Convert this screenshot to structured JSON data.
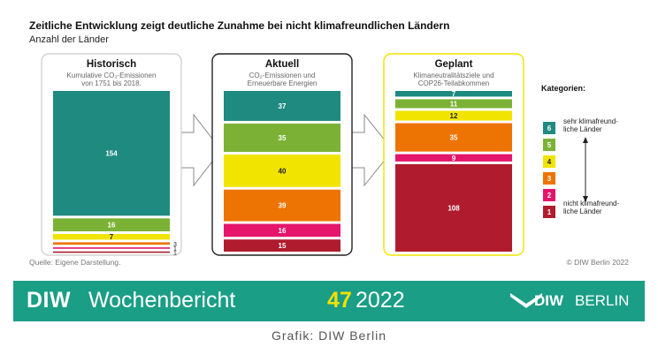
{
  "header": {
    "title": "Zeitliche Entwicklung zeigt deutliche Zunahme bei nicht klimafreundlichen Ländern",
    "subtitle": "Anzahl der Länder"
  },
  "colors": {
    "6": "#1f8a80",
    "5": "#7bb236",
    "4": "#f0e400",
    "3": "#ed7402",
    "2": "#e4156b",
    "1": "#b01c2e",
    "accent": "#1a9e86"
  },
  "chart_data": {
    "type": "bar",
    "categories": [
      "Historisch",
      "Aktuell",
      "Geplant"
    ],
    "panels": [
      {
        "title": "Historisch",
        "description": "Kumulative CO₂-Emissionen von 1751 bis 2018.",
        "description_lines": [
          "Kumulative CO₂-Emissionen",
          "von 1751 bis 2018."
        ],
        "border": "#cccccc",
        "segments": [
          {
            "category": 6,
            "value": 154
          },
          {
            "category": 5,
            "value": 16
          },
          {
            "category": 4,
            "value": 7
          },
          {
            "category": 3,
            "value": 3
          },
          {
            "category": 2,
            "value": 1
          },
          {
            "category": 1,
            "value": 1
          }
        ]
      },
      {
        "title": "Aktuell",
        "description": "CO₂-Emissionen und Erneuerbare Energien",
        "description_lines": [
          "CO₂-Emissionen und",
          "Erneuerbare Energien"
        ],
        "border": "#222222",
        "segments": [
          {
            "category": 6,
            "value": 37
          },
          {
            "category": 5,
            "value": 35
          },
          {
            "category": 4,
            "value": 40
          },
          {
            "category": 3,
            "value": 39
          },
          {
            "category": 2,
            "value": 16
          },
          {
            "category": 1,
            "value": 15
          }
        ]
      },
      {
        "title": "Geplant",
        "description": "Klimaneutralitätsziele und COP26-Teilabkommen",
        "description_lines": [
          "Klimaneutralitätsziele und",
          "COP26-Teilabkommen"
        ],
        "border": "#f0e400",
        "segments": [
          {
            "category": 6,
            "value": 7
          },
          {
            "category": 5,
            "value": 11
          },
          {
            "category": 4,
            "value": 12
          },
          {
            "category": 3,
            "value": 35
          },
          {
            "category": 2,
            "value": 9
          },
          {
            "category": 1,
            "value": 108
          }
        ]
      }
    ],
    "legend": {
      "title": "Kategorien:",
      "placement": "right",
      "items": [
        "6",
        "5",
        "4",
        "3",
        "2",
        "1"
      ],
      "label_top": [
        "sehr klimafreund-",
        "liche Länder"
      ],
      "label_bottom": [
        "nicht klimafreund-",
        "liche Länder"
      ]
    }
  },
  "footer": {
    "source": "Quelle: Eigene Darstellung.",
    "copyright": "© DIW Berlin 2022"
  },
  "banner": {
    "diw": "DIW",
    "publication": "Wochenbericht",
    "issue": "47",
    "year": "2022",
    "logo_diw": "DIW",
    "logo_berlin": "BERLIN"
  },
  "caption": "Grafik: DIW Berlin"
}
